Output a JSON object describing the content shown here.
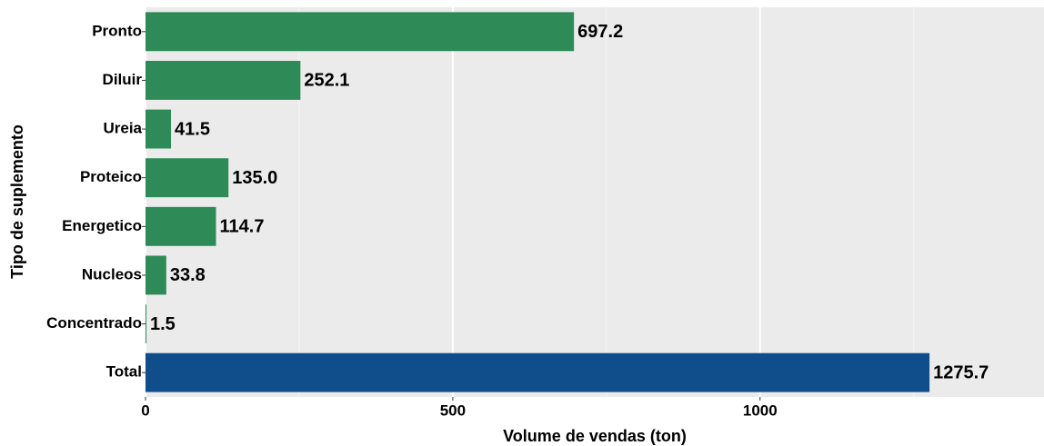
{
  "chart_data": {
    "type": "barh",
    "xlabel": "Volume de vendas (ton)",
    "ylabel": "Tipo de suplemento",
    "categories": [
      "Pronto",
      "Diluir",
      "Ureia",
      "Proteico",
      "Energetico",
      "Nucleos",
      "Concentrado",
      "Total"
    ],
    "values": [
      697.2,
      252.1,
      41.5,
      135.0,
      114.7,
      33.8,
      1.5,
      1275.7
    ],
    "value_labels": [
      "697.2",
      "252.1",
      "41.5",
      "135.0",
      "114.7",
      "33.8",
      "1.5",
      "1275.7"
    ],
    "colors": [
      "#2e8b57",
      "#2e8b57",
      "#2e8b57",
      "#2e8b57",
      "#2e8b57",
      "#2e8b57",
      "#2e8b57",
      "#104e8b"
    ],
    "xlim": [
      0,
      1462
    ],
    "xticks": [
      0,
      500,
      1000
    ],
    "xminor": [
      250,
      750,
      1250
    ],
    "grid": true
  }
}
